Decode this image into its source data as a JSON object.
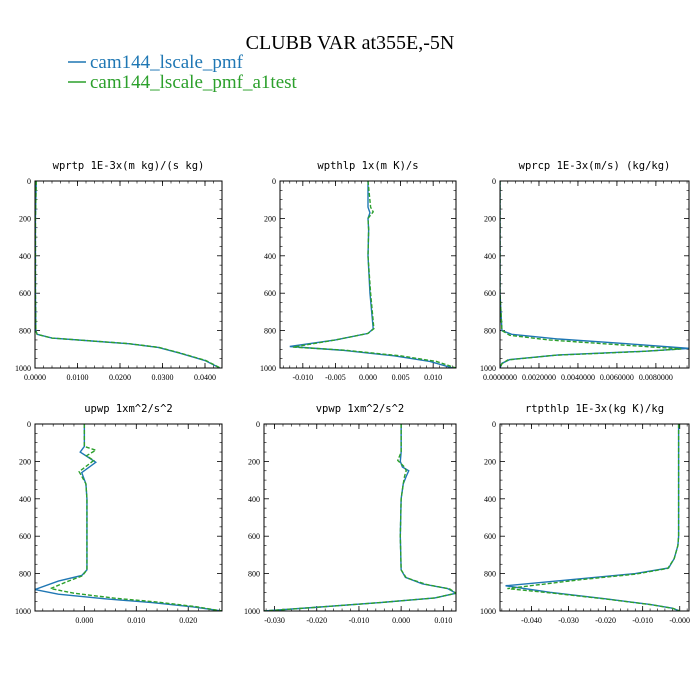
{
  "figure": {
    "title": "CLUBB VAR at355E,-5N",
    "legend": [
      {
        "name": "cam144_lscale_pmf",
        "color": "#1f77b4",
        "dash": "solid"
      },
      {
        "name": "cam144_lscale_pmf_a1test",
        "color": "#2ca02c",
        "dash": "dashed"
      }
    ]
  },
  "chart_data": [
    {
      "type": "line",
      "title": "wprtp  1E-3x(m kg)/(s kg)",
      "xlim": [
        0.0,
        0.044
      ],
      "ylim": [
        1000,
        0
      ],
      "y_inverted": true,
      "xticks": [
        0.0,
        0.01,
        0.02,
        0.03,
        0.04
      ],
      "xticklabels": [
        "0.0000",
        "0.0100",
        "0.0200",
        "0.0300",
        "0.0400"
      ],
      "yticks": [
        0,
        200,
        400,
        600,
        800,
        1000
      ],
      "yticklabels": [
        "0",
        "200",
        "400",
        "600",
        "800",
        "1000"
      ],
      "series": [
        {
          "name": "cam144_lscale_pmf",
          "color": "#1f77b4",
          "x": [
            0.0003,
            0.0002,
            0.0001,
            0.0001,
            0.0001,
            0.0002,
            0.0005,
            0.004,
            0.013,
            0.022,
            0.029,
            0.034,
            0.04,
            0.0435
          ],
          "y": [
            0,
            100,
            200,
            400,
            600,
            800,
            820,
            840,
            855,
            870,
            890,
            920,
            960,
            1000
          ]
        },
        {
          "name": "cam144_lscale_pmf_a1test",
          "color": "#2ca02c",
          "x": [
            0.0003,
            0.0002,
            0.0001,
            0.0001,
            0.0001,
            0.0002,
            0.0005,
            0.004,
            0.0132,
            0.0222,
            0.0292,
            0.0342,
            0.0402,
            0.0436
          ],
          "y": [
            0,
            100,
            200,
            400,
            600,
            800,
            820,
            840,
            855,
            870,
            890,
            920,
            960,
            1000
          ]
        }
      ]
    },
    {
      "type": "line",
      "title": "wpthlp  1x(m K)/s",
      "xlim": [
        -0.0135,
        0.0135
      ],
      "ylim": [
        1000,
        0
      ],
      "y_inverted": true,
      "xticks": [
        -0.01,
        -0.005,
        0.0,
        0.005,
        0.01
      ],
      "xticklabels": [
        "-0.010",
        "-0.005",
        "0.000",
        "0.005",
        "0.010"
      ],
      "yticks": [
        0,
        200,
        400,
        600,
        800,
        1000
      ],
      "yticklabels": [
        "0",
        "200",
        "400",
        "600",
        "800",
        "1000"
      ],
      "series": [
        {
          "name": "cam144_lscale_pmf",
          "color": "#1f77b4",
          "x": [
            0.0,
            0.0,
            0.0003,
            0.0,
            0.0001,
            0.0,
            0.0003,
            0.0008,
            0.0,
            -0.005,
            -0.012,
            -0.004,
            0.004,
            0.0095,
            0.013
          ],
          "y": [
            0,
            140,
            170,
            200,
            260,
            400,
            600,
            790,
            815,
            850,
            885,
            905,
            935,
            965,
            1000
          ]
        },
        {
          "name": "cam144_lscale_pmf_a1test",
          "color": "#2ca02c",
          "x": [
            0.0,
            0.0004,
            0.0008,
            0.0,
            0.0001,
            0.0,
            0.0004,
            0.0009,
            0.0,
            -0.005,
            -0.0115,
            -0.0035,
            0.005,
            0.0105,
            0.0135
          ],
          "y": [
            0,
            140,
            165,
            200,
            260,
            400,
            600,
            790,
            815,
            850,
            888,
            905,
            935,
            965,
            1000
          ]
        }
      ]
    },
    {
      "type": "line",
      "title": "wprcp  1E-3x(m/s) (kg/kg)",
      "xlim": [
        0.0,
        0.0097
      ],
      "ylim": [
        1000,
        0
      ],
      "y_inverted": true,
      "xticks": [
        0.0,
        0.002,
        0.004,
        0.006,
        0.008
      ],
      "xticklabels": [
        "0.0000000",
        "0.0020000",
        "0.0040000",
        "0.0060000",
        "0.0080000"
      ],
      "yticks": [
        0,
        200,
        400,
        600,
        800,
        1000
      ],
      "yticklabels": [
        "0",
        "200",
        "400",
        "600",
        "800",
        "1000"
      ],
      "series": [
        {
          "name": "cam144_lscale_pmf",
          "color": "#1f77b4",
          "x": [
            0.0,
            0.0,
            0.0001,
            0.0006,
            0.003,
            0.0065,
            0.0097,
            0.0075,
            0.003,
            0.0005,
            0.0001,
            0.0
          ],
          "y": [
            0,
            600,
            800,
            820,
            845,
            870,
            895,
            910,
            930,
            955,
            975,
            1000
          ]
        },
        {
          "name": "cam144_lscale_pmf_a1test",
          "color": "#2ca02c",
          "x": [
            0.0,
            0.0,
            0.0001,
            0.0005,
            0.0025,
            0.006,
            0.0093,
            0.0072,
            0.0028,
            0.0004,
            0.0001,
            0.0
          ],
          "y": [
            0,
            600,
            800,
            825,
            850,
            875,
            898,
            912,
            932,
            957,
            977,
            1000
          ]
        }
      ]
    },
    {
      "type": "line",
      "title": "upwp  1xm^2/s^2",
      "xlim": [
        -0.0095,
        0.0265
      ],
      "ylim": [
        1000,
        0
      ],
      "y_inverted": true,
      "xticks": [
        0.0,
        0.01,
        0.02
      ],
      "xticklabels": [
        "0.000",
        "0.010",
        "0.020"
      ],
      "yticks": [
        0,
        200,
        400,
        600,
        800,
        1000
      ],
      "yticklabels": [
        "0",
        "200",
        "400",
        "600",
        "800",
        "1000"
      ],
      "series": [
        {
          "name": "cam144_lscale_pmf",
          "color": "#1f77b4",
          "x": [
            0.0,
            0.0,
            -0.0008,
            0.0006,
            0.0022,
            -0.0005,
            0.0003,
            0.0005,
            0.0005,
            0.0005,
            -0.0005,
            -0.005,
            -0.0095,
            -0.005,
            0.004,
            0.013,
            0.021,
            0.0265
          ],
          "y": [
            0,
            120,
            150,
            175,
            205,
            260,
            320,
            400,
            600,
            780,
            810,
            840,
            885,
            910,
            935,
            955,
            978,
            1000
          ]
        },
        {
          "name": "cam144_lscale_pmf_a1test",
          "color": "#2ca02c",
          "x": [
            0.0,
            0.0,
            0.0022,
            0.0004,
            0.0018,
            -0.001,
            0.0003,
            0.0005,
            0.0005,
            0.0005,
            -0.0004,
            -0.0035,
            -0.0065,
            -0.002,
            0.006,
            0.014,
            0.0215,
            0.0265
          ],
          "y": [
            0,
            120,
            140,
            170,
            195,
            255,
            320,
            400,
            600,
            780,
            812,
            845,
            880,
            905,
            932,
            952,
            977,
            1000
          ]
        }
      ]
    },
    {
      "type": "line",
      "title": "vpwp  1xm^2/s^2",
      "xlim": [
        -0.0325,
        0.013
      ],
      "ylim": [
        1000,
        0
      ],
      "y_inverted": true,
      "xticks": [
        -0.03,
        -0.02,
        -0.01,
        0.0,
        0.01
      ],
      "xticklabels": [
        "-0.030",
        "-0.020",
        "-0.010",
        "0.000",
        "0.010"
      ],
      "yticks": [
        0,
        200,
        400,
        600,
        800,
        1000
      ],
      "yticklabels": [
        "0",
        "200",
        "400",
        "600",
        "800",
        "1000"
      ],
      "series": [
        {
          "name": "cam144_lscale_pmf",
          "color": "#1f77b4",
          "x": [
            0.0,
            0.0,
            -0.0002,
            0.0003,
            0.0018,
            0.0012,
            0.0005,
            0.0,
            -0.0002,
            0.0,
            0.001,
            0.005,
            0.011,
            0.013,
            0.008,
            -0.005,
            -0.02,
            -0.0325
          ],
          "y": [
            0,
            150,
            200,
            230,
            250,
            280,
            320,
            400,
            600,
            780,
            820,
            855,
            880,
            905,
            930,
            955,
            980,
            1000
          ]
        },
        {
          "name": "cam144_lscale_pmf_a1test",
          "color": "#2ca02c",
          "x": [
            0.0,
            0.0,
            -0.0008,
            0.0008,
            0.0012,
            0.0008,
            0.0005,
            0.0,
            -0.0002,
            0.0,
            0.0012,
            0.006,
            0.0115,
            0.013,
            0.008,
            -0.005,
            -0.02,
            -0.0325
          ],
          "y": [
            0,
            150,
            195,
            230,
            250,
            280,
            320,
            400,
            600,
            780,
            822,
            858,
            882,
            905,
            930,
            955,
            980,
            1000
          ]
        }
      ]
    },
    {
      "type": "line",
      "title": "rtpthlp  1E-3x(kg K)/kg",
      "xlim": [
        -0.0485,
        0.0025
      ],
      "ylim": [
        1000,
        0
      ],
      "y_inverted": true,
      "xticks": [
        -0.04,
        -0.03,
        -0.02,
        -0.01,
        0.0
      ],
      "xticklabels": [
        "-0.040",
        "-0.030",
        "-0.020",
        "-0.010",
        "-0.000"
      ],
      "yticks": [
        0,
        200,
        400,
        600,
        800,
        1000
      ],
      "yticklabels": [
        "0",
        "200",
        "400",
        "600",
        "800",
        "1000"
      ],
      "series": [
        {
          "name": "cam144_lscale_pmf",
          "color": "#1f77b4",
          "x": [
            -0.0003,
            -0.0003,
            -0.0003,
            -0.0005,
            -0.0015,
            -0.003,
            -0.012,
            -0.028,
            -0.047,
            -0.035,
            -0.02,
            -0.008,
            -0.002,
            0.0
          ],
          "y": [
            0,
            400,
            600,
            650,
            720,
            770,
            800,
            830,
            865,
            900,
            935,
            965,
            985,
            1000
          ]
        },
        {
          "name": "cam144_lscale_pmf_a1test",
          "color": "#2ca02c",
          "x": [
            -0.0003,
            -0.0003,
            -0.0003,
            -0.0005,
            -0.0015,
            -0.0032,
            -0.012,
            -0.027,
            -0.0465,
            -0.034,
            -0.019,
            -0.0075,
            -0.0018,
            0.0
          ],
          "y": [
            0,
            400,
            600,
            650,
            720,
            772,
            803,
            833,
            880,
            905,
            938,
            967,
            986,
            1000
          ]
        }
      ]
    }
  ]
}
